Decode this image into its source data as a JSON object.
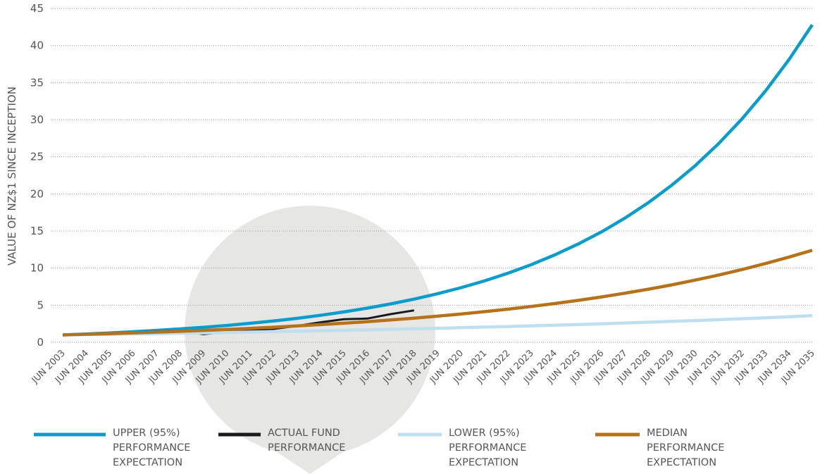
{
  "chart_data": {
    "type": "line",
    "y_label": "VALUE OF NZ$1 SINCE INCEPTION",
    "categories": [
      "JUN 2003",
      "JUN 2004",
      "JUN 2005",
      "JUN 2006",
      "JUN 2007",
      "JUN 2008",
      "JUN 2009",
      "JUN 2010",
      "JUN 2011",
      "JUN 2012",
      "JUN 2013",
      "JUN 2014",
      "JUN 2015",
      "JUN 2016",
      "JUN 2017",
      "JUN 2018",
      "JUN 2019",
      "JUN 2020",
      "JUN 2021",
      "JUN 2022",
      "JUN 2023",
      "JUN 2024",
      "JUN 2025",
      "JUN 2026",
      "JUN 2027",
      "JUN 2028",
      "JUN 2029",
      "JUN 2030",
      "JUN 2031",
      "JUN 2032",
      "JUN 2033",
      "JUN 2034",
      "JUN 2035"
    ],
    "series": [
      {
        "name": "UPPER (95%) PERFORMANCE EXPECTATION",
        "color": "#0a9ccb",
        "values": [
          1.0,
          1.12,
          1.26,
          1.42,
          1.6,
          1.8,
          2.02,
          2.27,
          2.56,
          2.88,
          3.23,
          3.64,
          4.09,
          4.6,
          5.17,
          5.82,
          6.54,
          7.36,
          8.27,
          9.3,
          10.46,
          11.77,
          13.23,
          14.88,
          16.74,
          18.82,
          21.17,
          23.8,
          26.77,
          30.11,
          33.86,
          38.08,
          42.8
        ]
      },
      {
        "name": "ACTUAL FUND PERFORMANCE",
        "color": "#1a1a1a",
        "values": [
          1.0,
          1.1,
          1.2,
          1.3,
          1.45,
          1.55,
          1.1,
          1.4,
          1.7,
          1.8,
          2.2,
          2.7,
          3.1,
          3.2,
          3.8,
          4.3,
          null,
          null,
          null,
          null,
          null,
          null,
          null,
          null,
          null,
          null,
          null,
          null,
          null,
          null,
          null,
          null,
          null
        ]
      },
      {
        "name": "LOWER (95%) PERFORMANCE EXPECTATION",
        "color": "#bfdff0",
        "values": [
          1.0,
          1.04,
          1.08,
          1.13,
          1.17,
          1.22,
          1.27,
          1.32,
          1.38,
          1.43,
          1.49,
          1.55,
          1.61,
          1.68,
          1.75,
          1.82,
          1.89,
          1.97,
          2.05,
          2.13,
          2.22,
          2.31,
          2.4,
          2.5,
          2.6,
          2.71,
          2.82,
          2.93,
          3.05,
          3.18,
          3.3,
          3.44,
          3.6
        ]
      },
      {
        "name": "MEDIAN PERFORMANCE EXPECTATION",
        "color": "#b5721a",
        "values": [
          1.0,
          1.08,
          1.17,
          1.27,
          1.37,
          1.48,
          1.6,
          1.74,
          1.88,
          2.03,
          2.2,
          2.38,
          2.57,
          2.78,
          3.01,
          3.26,
          3.52,
          3.81,
          4.13,
          4.46,
          4.83,
          5.22,
          5.65,
          6.11,
          6.62,
          7.16,
          7.74,
          8.38,
          9.06,
          9.81,
          10.61,
          11.48,
          12.4
        ]
      }
    ],
    "ylim": [
      0,
      45
    ],
    "yticks": [
      0,
      5,
      10,
      15,
      20,
      25,
      30,
      35,
      40,
      45
    ],
    "grid": true
  }
}
